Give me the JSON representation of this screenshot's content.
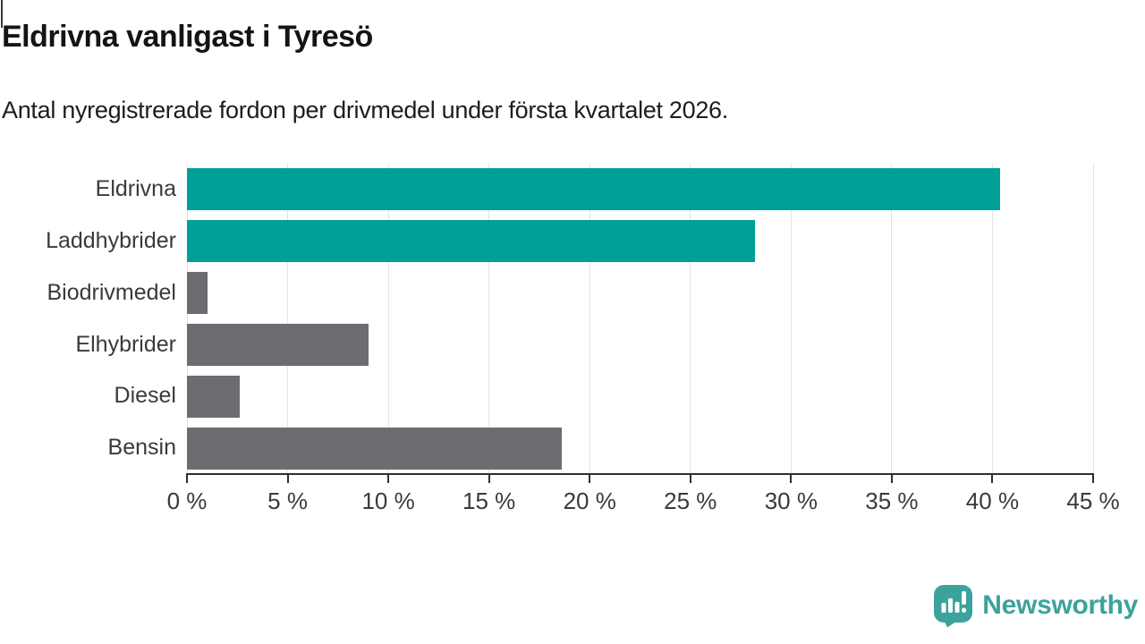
{
  "header": {
    "title": "Eldrivna vanligast i Tyresö",
    "subtitle": "Antal nyregistrerade fordon per drivmedel under första kvartalet 2026."
  },
  "chart_data": {
    "type": "bar",
    "orientation": "horizontal",
    "title": "Eldrivna vanligast i Tyresö",
    "subtitle": "Antal nyregistrerade fordon per drivmedel under första kvartalet 2026.",
    "categories": [
      "Eldrivna",
      "Laddhybrider",
      "Biodrivmedel",
      "Elhybrider",
      "Diesel",
      "Bensin"
    ],
    "values": [
      40.4,
      28.2,
      1.0,
      9.0,
      2.6,
      18.6
    ],
    "unit": "%",
    "bar_colors": [
      "#00a096",
      "#00a096",
      "#6c6c71",
      "#6c6c71",
      "#6c6c71",
      "#6c6c71"
    ],
    "xlim": [
      0,
      45
    ],
    "x_tick_step": 5,
    "x_tick_labels": [
      "0 %",
      "5 %",
      "10 %",
      "15 %",
      "20 %",
      "25 %",
      "30 %",
      "35 %",
      "40 %",
      "45 %"
    ],
    "grid": true,
    "legend": false,
    "xlabel": "",
    "ylabel": ""
  },
  "colors": {
    "accent_teal": "#00a096",
    "neutral_gray": "#6c6c71",
    "gridline": "#e3e3e3",
    "axis": "#2f2f2f",
    "logo_teal": "#3ba39c",
    "background": "#ffffff"
  },
  "footer": {
    "brand": "Newsworthy",
    "logo_icon": "newsworthy-speech-bubble-chart-icon"
  }
}
